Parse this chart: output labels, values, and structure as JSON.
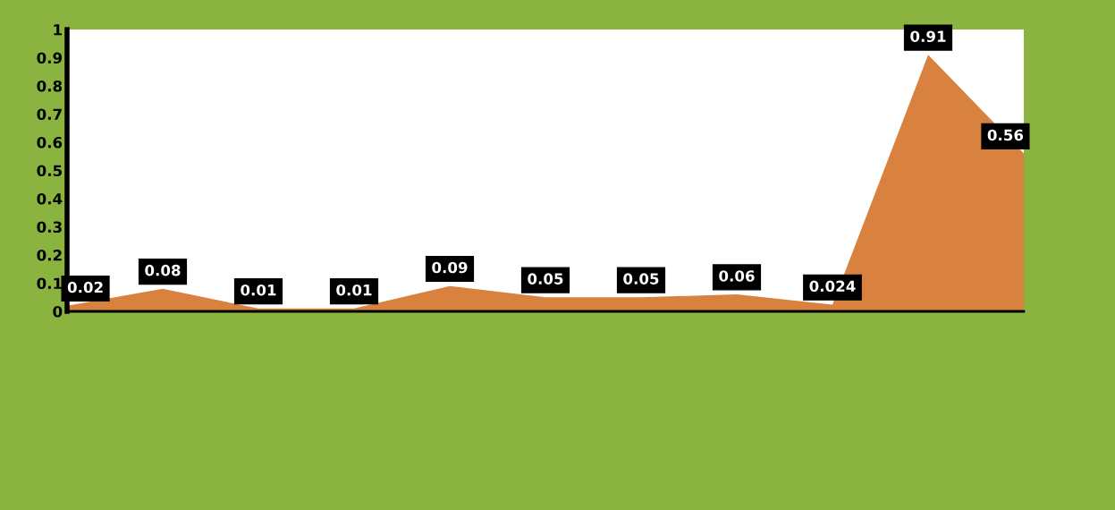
{
  "chart_data": {
    "type": "area",
    "categories": [
      null,
      null,
      null,
      null,
      null,
      null,
      null,
      null,
      null,
      null,
      null
    ],
    "series": [
      {
        "color": "#d9813f",
        "values": [
          0.02,
          0.08,
          0.01,
          0.01,
          0.09,
          0.05,
          0.05,
          0.06,
          0.024,
          0.91,
          0.56
        ]
      }
    ],
    "ylim": [
      0,
      1
    ],
    "yticks": [
      0,
      0.1,
      0.2,
      0.3,
      0.4,
      0.5,
      0.6,
      0.7,
      0.8,
      0.9,
      1
    ],
    "grid": false,
    "data_labels": true
  }
}
